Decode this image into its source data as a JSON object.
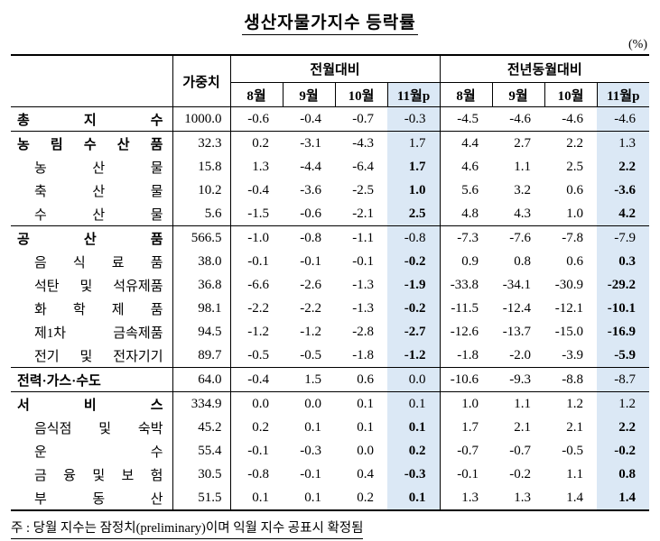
{
  "title": "생산자물가지수 등락률",
  "unit_label": "(%)",
  "footnote": "주 : 당월 지수는 잠정치(preliminary)이며 익월 지수 공표시 확정됨",
  "colors": {
    "highlight": "#dbe8f5",
    "border": "#000000",
    "background": "#ffffff"
  },
  "table": {
    "weight_header": "가중치",
    "group_headers": [
      "전월대비",
      "전년동월대비"
    ],
    "month_headers": [
      "8월",
      "9월",
      "10월",
      "11월p"
    ],
    "rows": [
      {
        "label": "총 지 수",
        "level": "main",
        "group_start": false,
        "weight": "1000.0",
        "mom": [
          "-0.6",
          "-0.4",
          "-0.7",
          "-0.3"
        ],
        "yoy": [
          "-4.5",
          "-4.6",
          "-4.6",
          "-4.6"
        ]
      },
      {
        "label": "농 림 수 산 품",
        "level": "main",
        "group_start": true,
        "weight": "32.3",
        "mom": [
          "0.2",
          "-3.1",
          "-4.3",
          "1.7"
        ],
        "yoy": [
          "4.4",
          "2.7",
          "2.2",
          "1.3"
        ]
      },
      {
        "label": "농 산 물",
        "level": "sub",
        "group_start": false,
        "weight": "15.8",
        "mom": [
          "1.3",
          "-4.4",
          "-6.4",
          "1.7"
        ],
        "yoy": [
          "4.6",
          "1.1",
          "2.5",
          "2.2"
        ]
      },
      {
        "label": "축 산 물",
        "level": "sub",
        "group_start": false,
        "weight": "10.2",
        "mom": [
          "-0.4",
          "-3.6",
          "-2.5",
          "1.0"
        ],
        "yoy": [
          "5.6",
          "3.2",
          "0.6",
          "-3.6"
        ]
      },
      {
        "label": "수 산 물",
        "level": "sub",
        "group_start": false,
        "weight": "5.6",
        "mom": [
          "-1.5",
          "-0.6",
          "-2.1",
          "2.5"
        ],
        "yoy": [
          "4.8",
          "4.3",
          "1.0",
          "4.2"
        ]
      },
      {
        "label": "공 산 품",
        "level": "main",
        "group_start": true,
        "weight": "566.5",
        "mom": [
          "-1.0",
          "-0.8",
          "-1.1",
          "-0.8"
        ],
        "yoy": [
          "-7.3",
          "-7.6",
          "-7.8",
          "-7.9"
        ]
      },
      {
        "label": "음 식 료 품",
        "level": "sub",
        "group_start": false,
        "weight": "38.0",
        "mom": [
          "-0.1",
          "-0.1",
          "-0.1",
          "-0.2"
        ],
        "yoy": [
          "0.9",
          "0.8",
          "0.6",
          "0.3"
        ]
      },
      {
        "label": "석탄 및 석유제품",
        "level": "sub",
        "group_start": false,
        "weight": "36.8",
        "mom": [
          "-6.6",
          "-2.6",
          "-1.3",
          "-1.9"
        ],
        "yoy": [
          "-33.8",
          "-34.1",
          "-30.9",
          "-29.2"
        ]
      },
      {
        "label": "화 학 제 품",
        "level": "sub",
        "group_start": false,
        "weight": "98.1",
        "mom": [
          "-2.2",
          "-2.2",
          "-1.3",
          "-0.2"
        ],
        "yoy": [
          "-11.5",
          "-12.4",
          "-12.1",
          "-10.1"
        ]
      },
      {
        "label": "제1차 금속제품",
        "level": "sub",
        "group_start": false,
        "weight": "94.5",
        "mom": [
          "-1.2",
          "-1.2",
          "-2.8",
          "-2.7"
        ],
        "yoy": [
          "-12.6",
          "-13.7",
          "-15.0",
          "-16.9"
        ]
      },
      {
        "label": "전기 및 전자기기",
        "level": "sub",
        "group_start": false,
        "weight": "89.7",
        "mom": [
          "-0.5",
          "-0.5",
          "-1.8",
          "-1.2"
        ],
        "yoy": [
          "-1.8",
          "-2.0",
          "-3.9",
          "-5.9"
        ]
      },
      {
        "label": "전력·가스·수도",
        "level": "main",
        "group_start": true,
        "weight": "64.0",
        "mom": [
          "-0.4",
          "1.5",
          "0.6",
          "0.0"
        ],
        "yoy": [
          "-10.6",
          "-9.3",
          "-8.8",
          "-8.7"
        ]
      },
      {
        "label": "서 비 스",
        "level": "main",
        "group_start": true,
        "weight": "334.9",
        "mom": [
          "0.0",
          "0.0",
          "0.1",
          "0.1"
        ],
        "yoy": [
          "1.0",
          "1.1",
          "1.2",
          "1.2"
        ]
      },
      {
        "label": "음식점 및 숙박",
        "level": "sub",
        "group_start": false,
        "weight": "45.2",
        "mom": [
          "0.2",
          "0.1",
          "0.1",
          "0.1"
        ],
        "yoy": [
          "1.7",
          "2.1",
          "2.1",
          "2.2"
        ]
      },
      {
        "label": "운 수",
        "level": "sub",
        "group_start": false,
        "weight": "55.4",
        "mom": [
          "-0.1",
          "-0.3",
          "0.0",
          "0.2"
        ],
        "yoy": [
          "-0.7",
          "-0.7",
          "-0.5",
          "-0.2"
        ]
      },
      {
        "label": "금 융 및 보 험",
        "level": "sub",
        "group_start": false,
        "weight": "30.5",
        "mom": [
          "-0.8",
          "-0.1",
          "0.4",
          "-0.3"
        ],
        "yoy": [
          "-0.1",
          "-0.2",
          "1.1",
          "0.8"
        ]
      },
      {
        "label": "부 동 산",
        "level": "sub",
        "group_start": false,
        "weight": "51.5",
        "mom": [
          "0.1",
          "0.1",
          "0.2",
          "0.1"
        ],
        "yoy": [
          "1.3",
          "1.3",
          "1.4",
          "1.4"
        ]
      }
    ]
  }
}
